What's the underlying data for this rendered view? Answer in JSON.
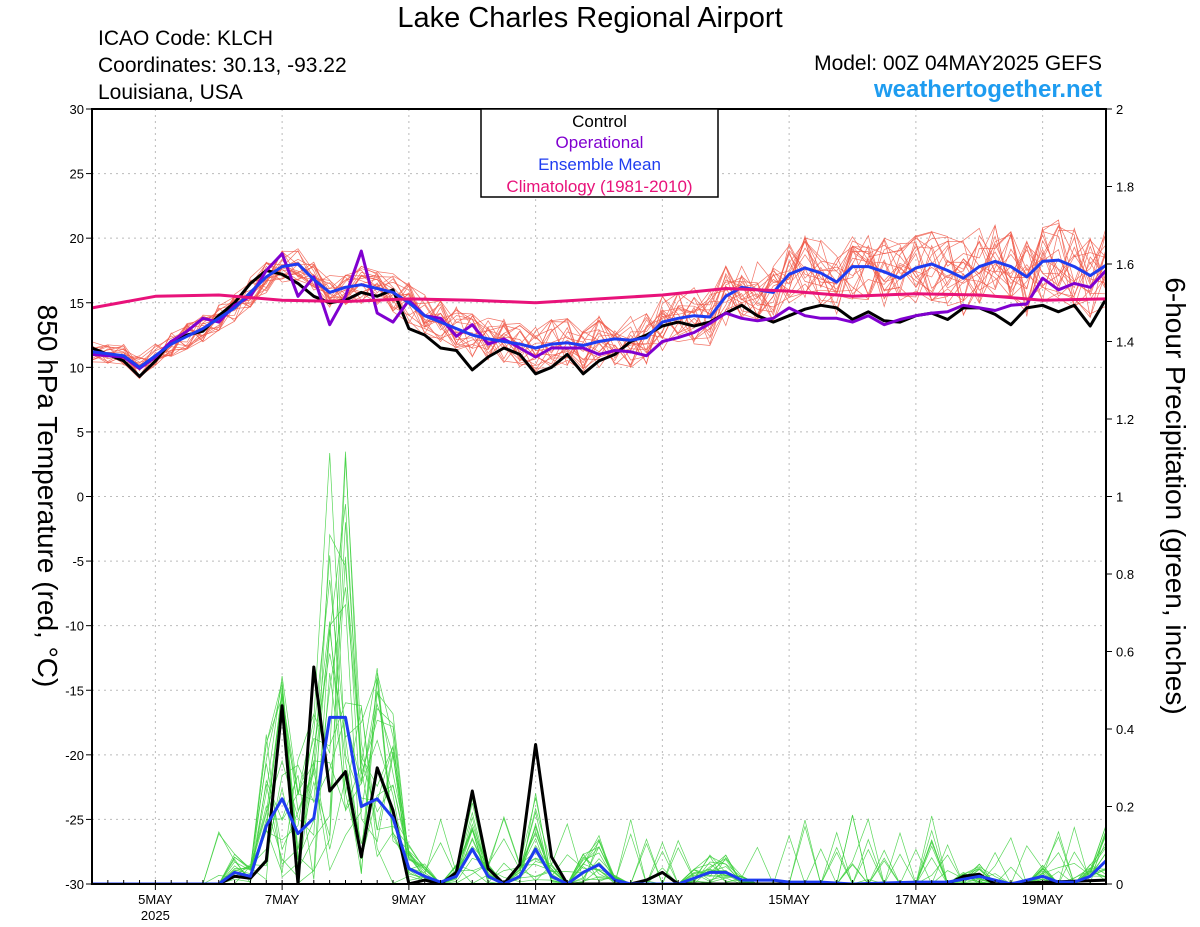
{
  "header": {
    "title": "Lake Charles Regional Airport",
    "icao": "ICAO Code: KLCH",
    "coordinates": "Coordinates: 30.13, -93.22",
    "location": "Louisiana, USA",
    "model": "Model: 00Z 04MAY2025 GEFS",
    "site": "weathertogether.net"
  },
  "colors": {
    "control": "#000000",
    "operational": "#8000d0",
    "ensemble_mean": "#1e3cf0",
    "climatology": "#e8127a",
    "member_temperature": "#f05a4a",
    "member_precip": "#3cd03c",
    "site": "#1e9cf0"
  },
  "chart_data": {
    "type": "line",
    "title": "Lake Charles Regional Airport",
    "ylabel_left": "850 hPa Temperature (red, °C)",
    "ylabel_right": "6-hour Precipitation (green, inches)",
    "x_unit": "days since 00Z 4 May 2025",
    "xlim": [
      0,
      16
    ],
    "ylim_left": [
      -30,
      30
    ],
    "ylim_right": [
      0,
      2
    ],
    "yticks_left": [
      30,
      25,
      20,
      15,
      10,
      5,
      0,
      -5,
      -10,
      -15,
      -20,
      -25,
      -30
    ],
    "yticks_right": [
      "2",
      "1.8",
      "1.6",
      "1.4",
      "1.2",
      "1",
      "0.8",
      "0.6",
      "0.4",
      "0.2",
      "0"
    ],
    "xticks": [
      {
        "x": 1,
        "label": "5MAY",
        "sub": "2025"
      },
      {
        "x": 3,
        "label": "7MAY"
      },
      {
        "x": 5,
        "label": "9MAY"
      },
      {
        "x": 7,
        "label": "11MAY"
      },
      {
        "x": 9,
        "label": "13MAY"
      },
      {
        "x": 11,
        "label": "15MAY"
      },
      {
        "x": 13,
        "label": "17MAY"
      },
      {
        "x": 15,
        "label": "19MAY"
      }
    ],
    "grid": true,
    "legend": {
      "placement": "top-center",
      "entries": [
        "Control",
        "Operational",
        "Ensemble Mean",
        "Climatology (1981-2010)"
      ]
    },
    "temperature_series": [
      {
        "name": "Control",
        "color": "#000000",
        "points": [
          [
            0,
            11.5
          ],
          [
            0.5,
            10.5
          ],
          [
            0.75,
            9.3
          ],
          [
            1,
            10.5
          ],
          [
            1.25,
            12
          ],
          [
            1.5,
            12.5
          ],
          [
            1.75,
            12.8
          ],
          [
            2,
            14
          ],
          [
            2.25,
            15
          ],
          [
            2.5,
            16.5
          ],
          [
            2.75,
            17.5
          ],
          [
            3,
            17.2
          ],
          [
            3.25,
            16.5
          ],
          [
            3.5,
            15.5
          ],
          [
            3.75,
            15
          ],
          [
            4,
            15.2
          ],
          [
            4.25,
            15.8
          ],
          [
            4.5,
            15.5
          ],
          [
            4.75,
            16
          ],
          [
            5,
            13
          ],
          [
            5.25,
            12.5
          ],
          [
            5.5,
            11.5
          ],
          [
            5.75,
            11.3
          ],
          [
            6,
            9.8
          ],
          [
            6.25,
            10.8
          ],
          [
            6.5,
            11.5
          ],
          [
            6.75,
            11
          ],
          [
            7,
            9.5
          ],
          [
            7.25,
            10
          ],
          [
            7.5,
            11
          ],
          [
            7.75,
            9.5
          ],
          [
            8,
            10.5
          ],
          [
            8.25,
            11
          ],
          [
            8.5,
            12
          ],
          [
            8.75,
            12.5
          ],
          [
            9,
            13.2
          ],
          [
            9.25,
            13.5
          ],
          [
            9.5,
            13.2
          ],
          [
            9.75,
            13.5
          ],
          [
            10,
            14.2
          ],
          [
            10.25,
            14.8
          ],
          [
            10.5,
            14
          ],
          [
            10.75,
            13.5
          ],
          [
            11,
            14
          ],
          [
            11.25,
            14.5
          ],
          [
            11.5,
            14.8
          ],
          [
            11.75,
            14.6
          ],
          [
            12,
            13.7
          ],
          [
            12.25,
            14.3
          ],
          [
            12.5,
            13.6
          ],
          [
            12.75,
            13.5
          ],
          [
            13,
            14
          ],
          [
            13.25,
            14.2
          ],
          [
            13.5,
            13.7
          ],
          [
            13.75,
            14.6
          ],
          [
            14,
            14.6
          ],
          [
            14.25,
            14.1
          ],
          [
            14.5,
            13.3
          ],
          [
            14.75,
            14.6
          ],
          [
            15,
            14.8
          ],
          [
            15.25,
            14.3
          ],
          [
            15.5,
            14.8
          ],
          [
            15.75,
            13.2
          ],
          [
            16,
            15.3
          ]
        ]
      },
      {
        "name": "Operational",
        "color": "#8000d0",
        "points": [
          [
            0,
            11
          ],
          [
            0.5,
            10.8
          ],
          [
            0.75,
            9.9
          ],
          [
            1,
            10.8
          ],
          [
            1.25,
            12
          ],
          [
            1.5,
            12.8
          ],
          [
            1.75,
            13.8
          ],
          [
            2,
            13.5
          ],
          [
            2.25,
            14.8
          ],
          [
            2.5,
            15.5
          ],
          [
            2.75,
            17.5
          ],
          [
            3,
            18.8
          ],
          [
            3.25,
            15.5
          ],
          [
            3.5,
            17
          ],
          [
            3.75,
            13.3
          ],
          [
            4,
            15.5
          ],
          [
            4.25,
            19
          ],
          [
            4.5,
            14.2
          ],
          [
            4.75,
            13.5
          ],
          [
            5,
            15.2
          ],
          [
            5.25,
            14
          ],
          [
            5.5,
            13.8
          ],
          [
            5.75,
            12.4
          ],
          [
            6,
            13.3
          ],
          [
            6.25,
            11.8
          ],
          [
            6.5,
            12.2
          ],
          [
            6.75,
            11.5
          ],
          [
            7,
            10.8
          ],
          [
            7.25,
            11.5
          ],
          [
            7.5,
            11.5
          ],
          [
            7.75,
            11.5
          ],
          [
            8,
            11
          ],
          [
            8.25,
            11.3
          ],
          [
            8.5,
            11.2
          ],
          [
            8.75,
            10.9
          ],
          [
            9,
            12
          ],
          [
            9.25,
            12.3
          ],
          [
            9.5,
            12.7
          ],
          [
            9.75,
            13.4
          ],
          [
            10,
            14.2
          ],
          [
            10.25,
            13.8
          ],
          [
            10.5,
            13.6
          ],
          [
            10.75,
            13.8
          ],
          [
            11,
            14.6
          ],
          [
            11.25,
            14
          ],
          [
            11.5,
            13.8
          ],
          [
            11.75,
            13.8
          ],
          [
            12,
            13.5
          ],
          [
            12.25,
            14
          ],
          [
            12.5,
            13.3
          ],
          [
            12.75,
            13.7
          ],
          [
            13,
            14
          ],
          [
            13.25,
            14.2
          ],
          [
            13.5,
            14.3
          ],
          [
            13.75,
            14.8
          ],
          [
            14,
            14.6
          ],
          [
            14.25,
            14.4
          ],
          [
            14.5,
            14.8
          ],
          [
            14.75,
            14.9
          ],
          [
            15,
            16.9
          ],
          [
            15.25,
            16
          ],
          [
            15.5,
            16.5
          ],
          [
            15.75,
            16.2
          ],
          [
            16,
            17.5
          ]
        ]
      },
      {
        "name": "Ensemble Mean",
        "color": "#1e3cf0",
        "points": [
          [
            0,
            11.2
          ],
          [
            0.5,
            10.9
          ],
          [
            0.75,
            10
          ],
          [
            1,
            10.9
          ],
          [
            1.25,
            11.8
          ],
          [
            1.5,
            12.4
          ],
          [
            1.75,
            13
          ],
          [
            2,
            13.8
          ],
          [
            2.25,
            14.6
          ],
          [
            2.5,
            15.8
          ],
          [
            2.75,
            17
          ],
          [
            3,
            17.8
          ],
          [
            3.25,
            18
          ],
          [
            3.5,
            16.8
          ],
          [
            3.75,
            15.8
          ],
          [
            4,
            16.2
          ],
          [
            4.25,
            16.4
          ],
          [
            4.5,
            16.1
          ],
          [
            4.75,
            15.8
          ],
          [
            5,
            15
          ],
          [
            5.25,
            14
          ],
          [
            5.5,
            13.5
          ],
          [
            5.75,
            13
          ],
          [
            6,
            12.5
          ],
          [
            6.25,
            12.2
          ],
          [
            6.5,
            12
          ],
          [
            6.75,
            11.8
          ],
          [
            7,
            11.5
          ],
          [
            7.25,
            11.8
          ],
          [
            7.5,
            11.9
          ],
          [
            7.75,
            11.7
          ],
          [
            8,
            12
          ],
          [
            8.25,
            12.2
          ],
          [
            8.5,
            12.1
          ],
          [
            8.75,
            12.3
          ],
          [
            9,
            13.5
          ],
          [
            9.25,
            13.8
          ],
          [
            9.5,
            14
          ],
          [
            9.75,
            13.9
          ],
          [
            10,
            15.5
          ],
          [
            10.25,
            16.2
          ],
          [
            10.5,
            16
          ],
          [
            10.75,
            15.8
          ],
          [
            11,
            17.2
          ],
          [
            11.25,
            17.7
          ],
          [
            11.5,
            17.3
          ],
          [
            11.75,
            16.6
          ],
          [
            12,
            17.8
          ],
          [
            12.25,
            17.8
          ],
          [
            12.5,
            17.4
          ],
          [
            12.75,
            16.9
          ],
          [
            13,
            17.7
          ],
          [
            13.25,
            18
          ],
          [
            13.5,
            17.5
          ],
          [
            13.75,
            16.9
          ],
          [
            14,
            17.8
          ],
          [
            14.25,
            18.2
          ],
          [
            14.5,
            17.8
          ],
          [
            14.75,
            17
          ],
          [
            15,
            18.2
          ],
          [
            15.25,
            18.3
          ],
          [
            15.5,
            17.8
          ],
          [
            15.75,
            17.1
          ],
          [
            16,
            17.9
          ]
        ]
      },
      {
        "name": "Climatology (1981-2010)",
        "color": "#e8127a",
        "points": [
          [
            0,
            14.6
          ],
          [
            1,
            15.5
          ],
          [
            2,
            15.6
          ],
          [
            3,
            15.2
          ],
          [
            4,
            15.1
          ],
          [
            5,
            15.3
          ],
          [
            6,
            15.2
          ],
          [
            7,
            15
          ],
          [
            8,
            15.3
          ],
          [
            9,
            15.6
          ],
          [
            10,
            16.1
          ],
          [
            11,
            15.9
          ],
          [
            12,
            15.5
          ],
          [
            13,
            15.7
          ],
          [
            14,
            15.6
          ],
          [
            15,
            15.2
          ],
          [
            16,
            15.3
          ]
        ]
      }
    ],
    "precip_series": [
      {
        "name": "Control",
        "color": "#000000",
        "points": [
          [
            0,
            0
          ],
          [
            1.75,
            0
          ],
          [
            2,
            0
          ],
          [
            2.25,
            0.02
          ],
          [
            2.5,
            0.015
          ],
          [
            2.75,
            0.06
          ],
          [
            3,
            0.46
          ],
          [
            3.25,
            0
          ],
          [
            3.5,
            0.56
          ],
          [
            3.75,
            0.24
          ],
          [
            4,
            0.29
          ],
          [
            4.25,
            0.07
          ],
          [
            4.5,
            0.3
          ],
          [
            4.75,
            0.19
          ],
          [
            5,
            0
          ],
          [
            5.25,
            0.01
          ],
          [
            5.5,
            0
          ],
          [
            5.75,
            0.03
          ],
          [
            6,
            0.24
          ],
          [
            6.25,
            0.04
          ],
          [
            6.5,
            0
          ],
          [
            6.75,
            0.05
          ],
          [
            7,
            0.36
          ],
          [
            7.25,
            0.07
          ],
          [
            7.5,
            0
          ],
          [
            8,
            0
          ],
          [
            8.5,
            0
          ],
          [
            8.75,
            0.01
          ],
          [
            9,
            0.03
          ],
          [
            9.25,
            0
          ],
          [
            11,
            0
          ],
          [
            12,
            0
          ],
          [
            12.75,
            0
          ],
          [
            13,
            0.005
          ],
          [
            13.25,
            0
          ],
          [
            13.5,
            0
          ],
          [
            13.75,
            0.02
          ],
          [
            14,
            0.025
          ],
          [
            14.25,
            0
          ],
          [
            16,
            0.01
          ]
        ]
      },
      {
        "name": "Ensemble Mean",
        "color": "#1e3cf0",
        "points": [
          [
            0,
            0
          ],
          [
            1.75,
            0
          ],
          [
            2,
            0
          ],
          [
            2.25,
            0.03
          ],
          [
            2.5,
            0.02
          ],
          [
            2.75,
            0.15
          ],
          [
            3,
            0.22
          ],
          [
            3.25,
            0.13
          ],
          [
            3.5,
            0.17
          ],
          [
            3.75,
            0.43
          ],
          [
            4,
            0.43
          ],
          [
            4.25,
            0.2
          ],
          [
            4.5,
            0.22
          ],
          [
            4.75,
            0.17
          ],
          [
            5,
            0.04
          ],
          [
            5.25,
            0.02
          ],
          [
            5.5,
            0.005
          ],
          [
            5.75,
            0.02
          ],
          [
            6,
            0.09
          ],
          [
            6.25,
            0.02
          ],
          [
            6.5,
            0
          ],
          [
            6.75,
            0.02
          ],
          [
            7,
            0.09
          ],
          [
            7.25,
            0.02
          ],
          [
            7.5,
            0
          ],
          [
            7.75,
            0.03
          ],
          [
            8,
            0.05
          ],
          [
            8.25,
            0.01
          ],
          [
            8.5,
            0
          ],
          [
            9,
            0
          ],
          [
            9.25,
            0
          ],
          [
            9.75,
            0.03
          ],
          [
            10,
            0.03
          ],
          [
            10.25,
            0.01
          ],
          [
            10.75,
            0.01
          ],
          [
            11,
            0.005
          ],
          [
            11.5,
            0.005
          ],
          [
            12,
            0
          ],
          [
            13,
            0.005
          ],
          [
            13.5,
            0.005
          ],
          [
            14,
            0.02
          ],
          [
            14.5,
            0
          ],
          [
            15,
            0.02
          ],
          [
            15.25,
            0.005
          ],
          [
            15.5,
            0.005
          ],
          [
            15.75,
            0.02
          ],
          [
            16,
            0.06
          ]
        ]
      }
    ]
  }
}
